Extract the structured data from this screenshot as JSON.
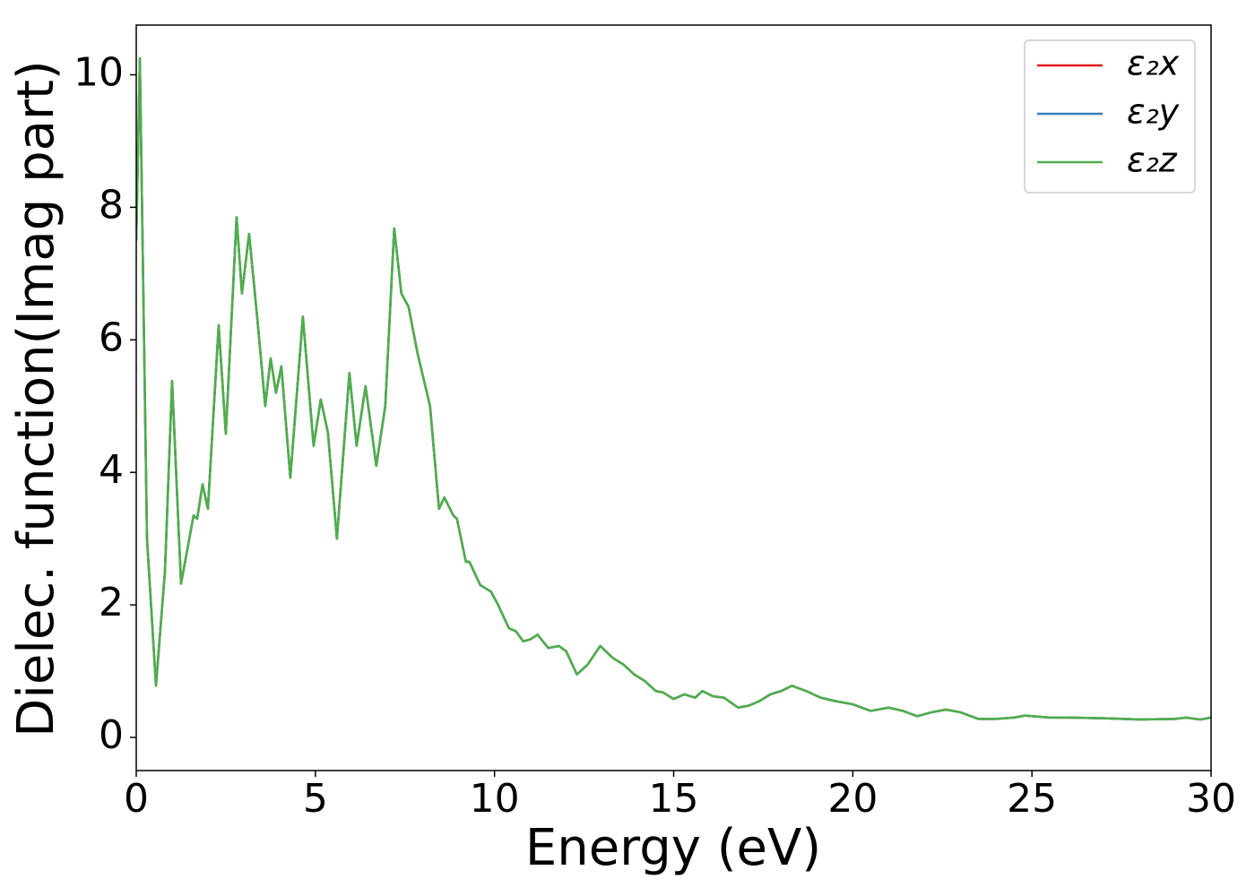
{
  "chart_data": {
    "type": "line",
    "xlabel": "Energy (eV)",
    "ylabel": "Dielec. function(Imag part)",
    "x": [
      0,
      0.1,
      0.3,
      0.55,
      0.8,
      1.0,
      1.25,
      1.6,
      1.7,
      1.85,
      2.0,
      2.3,
      2.5,
      2.8,
      2.95,
      3.15,
      3.4,
      3.6,
      3.75,
      3.9,
      4.05,
      4.3,
      4.65,
      4.95,
      5.15,
      5.35,
      5.6,
      5.95,
      6.15,
      6.4,
      6.7,
      6.95,
      7.2,
      7.4,
      7.6,
      7.85,
      8.2,
      8.45,
      8.6,
      8.85,
      8.95,
      9.2,
      9.3,
      9.6,
      9.9,
      10.1,
      10.4,
      10.6,
      10.8,
      11.0,
      11.2,
      11.5,
      11.8,
      12.0,
      12.3,
      12.6,
      12.95,
      13.3,
      13.6,
      13.9,
      14.2,
      14.5,
      14.7,
      15.0,
      15.3,
      15.6,
      15.8,
      16.1,
      16.4,
      16.8,
      17.1,
      17.4,
      17.7,
      18.0,
      18.3,
      18.7,
      19.1,
      19.5,
      20.0,
      20.5,
      21.0,
      21.4,
      21.8,
      22.2,
      22.6,
      23.0,
      23.5,
      24.0,
      24.5,
      24.8,
      25.5,
      26.0,
      27.0,
      28.0,
      29.0,
      29.3,
      29.7,
      30.0
    ],
    "series": [
      {
        "name": "ε₂x",
        "color": "#e41a1c",
        "values": [
          7.5,
          10.25,
          3.0,
          0.78,
          2.5,
          5.38,
          2.32,
          3.35,
          3.3,
          3.82,
          3.45,
          6.22,
          4.58,
          7.85,
          6.7,
          7.6,
          6.2,
          5.0,
          5.72,
          5.2,
          5.6,
          3.92,
          6.35,
          4.4,
          5.1,
          4.6,
          3.0,
          5.5,
          4.4,
          5.3,
          4.1,
          5.0,
          7.68,
          6.7,
          6.5,
          5.8,
          5.0,
          3.45,
          3.62,
          3.35,
          3.3,
          2.65,
          2.65,
          2.3,
          2.2,
          2.0,
          1.65,
          1.6,
          1.45,
          1.48,
          1.55,
          1.35,
          1.38,
          1.3,
          0.95,
          1.1,
          1.38,
          1.2,
          1.1,
          0.95,
          0.85,
          0.7,
          0.68,
          0.58,
          0.65,
          0.6,
          0.7,
          0.62,
          0.6,
          0.45,
          0.48,
          0.55,
          0.65,
          0.7,
          0.78,
          0.7,
          0.6,
          0.55,
          0.5,
          0.4,
          0.45,
          0.4,
          0.32,
          0.38,
          0.42,
          0.38,
          0.28,
          0.28,
          0.3,
          0.33,
          0.3,
          0.3,
          0.29,
          0.27,
          0.28,
          0.3,
          0.27,
          0.3
        ]
      },
      {
        "name": "ε₂y",
        "color": "#377eb8",
        "values": [
          7.5,
          10.25,
          3.0,
          0.78,
          2.5,
          5.38,
          2.32,
          3.35,
          3.3,
          3.82,
          3.45,
          6.22,
          4.58,
          7.85,
          6.7,
          7.6,
          6.2,
          5.0,
          5.72,
          5.2,
          5.6,
          3.92,
          6.35,
          4.4,
          5.1,
          4.6,
          3.0,
          5.5,
          4.4,
          5.3,
          4.1,
          5.0,
          7.68,
          6.7,
          6.5,
          5.8,
          5.0,
          3.45,
          3.62,
          3.35,
          3.3,
          2.65,
          2.65,
          2.3,
          2.2,
          2.0,
          1.65,
          1.6,
          1.45,
          1.48,
          1.55,
          1.35,
          1.38,
          1.3,
          0.95,
          1.1,
          1.38,
          1.2,
          1.1,
          0.95,
          0.85,
          0.7,
          0.68,
          0.58,
          0.65,
          0.6,
          0.7,
          0.62,
          0.6,
          0.45,
          0.48,
          0.55,
          0.65,
          0.7,
          0.78,
          0.7,
          0.6,
          0.55,
          0.5,
          0.4,
          0.45,
          0.4,
          0.32,
          0.38,
          0.42,
          0.38,
          0.28,
          0.28,
          0.3,
          0.33,
          0.3,
          0.3,
          0.29,
          0.27,
          0.28,
          0.3,
          0.27,
          0.3
        ]
      },
      {
        "name": "ε₂z",
        "color": "#4daf4a",
        "values": [
          7.5,
          10.25,
          3.0,
          0.78,
          2.5,
          5.38,
          2.32,
          3.35,
          3.3,
          3.82,
          3.45,
          6.22,
          4.58,
          7.85,
          6.7,
          7.6,
          6.2,
          5.0,
          5.72,
          5.2,
          5.6,
          3.92,
          6.35,
          4.4,
          5.1,
          4.6,
          3.0,
          5.5,
          4.4,
          5.3,
          4.1,
          5.0,
          7.68,
          6.7,
          6.5,
          5.8,
          5.0,
          3.45,
          3.62,
          3.35,
          3.3,
          2.65,
          2.65,
          2.3,
          2.2,
          2.0,
          1.65,
          1.6,
          1.45,
          1.48,
          1.55,
          1.35,
          1.38,
          1.3,
          0.95,
          1.1,
          1.38,
          1.2,
          1.1,
          0.95,
          0.85,
          0.7,
          0.68,
          0.58,
          0.65,
          0.6,
          0.7,
          0.62,
          0.6,
          0.45,
          0.48,
          0.55,
          0.65,
          0.7,
          0.78,
          0.7,
          0.6,
          0.55,
          0.5,
          0.4,
          0.45,
          0.4,
          0.32,
          0.38,
          0.42,
          0.38,
          0.28,
          0.28,
          0.3,
          0.33,
          0.3,
          0.3,
          0.29,
          0.27,
          0.28,
          0.3,
          0.27,
          0.3
        ]
      }
    ],
    "xlim": [
      0,
      30
    ],
    "xticks": [
      0,
      5,
      10,
      15,
      20,
      25,
      30
    ],
    "ylim": [
      -0.5,
      10.75
    ],
    "yticks": [
      0,
      2,
      4,
      6,
      8,
      10
    ],
    "grid": false,
    "legend": "upper right"
  }
}
